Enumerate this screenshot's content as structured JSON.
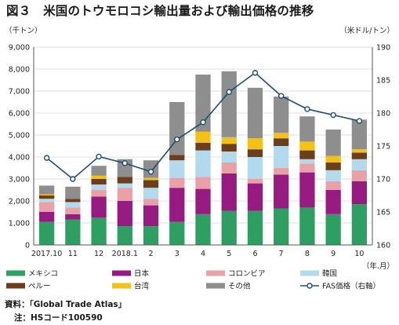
{
  "figure": {
    "title": "図３　米国のトウモロコシ輸出量および輸出価格の推移",
    "source": "資料：「Global Trade Atlas」",
    "note": "注：HSコード100590"
  },
  "chart_data": {
    "type": "bar",
    "stacked": true,
    "categories": [
      "2017.10",
      "11",
      "12",
      "2018.1",
      "2",
      "3",
      "4",
      "5",
      "6",
      "7",
      "8",
      "9",
      "10"
    ],
    "y_left_label": "（千トン）",
    "y_right_label": "（米ドル/トン）",
    "x_label": "（年.月）",
    "ylim_left": [
      0,
      9000
    ],
    "yticks_left": [
      "0",
      "1,000",
      "2,000",
      "3,000",
      "4,000",
      "5,000",
      "6,000",
      "7,000",
      "8,000",
      "9,000"
    ],
    "ylim_right": [
      160,
      190
    ],
    "yticks_right": [
      "160",
      "165",
      "170",
      "175",
      "180",
      "185",
      "190"
    ],
    "grid": true,
    "legend_position": "bottom",
    "series": [
      {
        "name": "メキシコ",
        "color": "#2e9e62",
        "values": [
          1050,
          1150,
          1250,
          850,
          850,
          1050,
          1400,
          1550,
          1550,
          1650,
          1700,
          1400,
          1850
        ]
      },
      {
        "name": "日本",
        "color": "#951b81",
        "values": [
          450,
          250,
          950,
          1150,
          950,
          1550,
          1150,
          1700,
          1250,
          1550,
          1600,
          1100,
          1050
        ]
      },
      {
        "name": "コロンビア",
        "color": "#e9a1a8",
        "values": [
          450,
          300,
          300,
          600,
          300,
          450,
          550,
          500,
          200,
          300,
          400,
          400,
          500
        ]
      },
      {
        "name": "韓国",
        "color": "#b3d9ec",
        "values": [
          150,
          250,
          250,
          200,
          500,
          800,
          1200,
          500,
          1000,
          1000,
          200,
          500,
          500
        ]
      },
      {
        "name": "ペルー",
        "color": "#6b3e1e",
        "values": [
          150,
          150,
          250,
          300,
          350,
          250,
          350,
          350,
          350,
          350,
          400,
          350,
          300
        ]
      },
      {
        "name": "台湾",
        "color": "#f3c117",
        "values": [
          50,
          0,
          150,
          0,
          100,
          0,
          500,
          300,
          500,
          250,
          400,
          300,
          150
        ]
      },
      {
        "name": "その他",
        "color": "#8e8e8e",
        "values": [
          400,
          550,
          450,
          800,
          800,
          2400,
          2600,
          3000,
          2300,
          1650,
          1150,
          1200,
          1350
        ]
      }
    ],
    "line": {
      "name": "FAS価格（右軸）",
      "color": "#1d4e6e",
      "values": [
        173.2,
        170.0,
        173.4,
        172.4,
        171.1,
        176.0,
        178.6,
        183.2,
        186.1,
        182.6,
        180.6,
        179.7,
        178.8
      ]
    }
  }
}
